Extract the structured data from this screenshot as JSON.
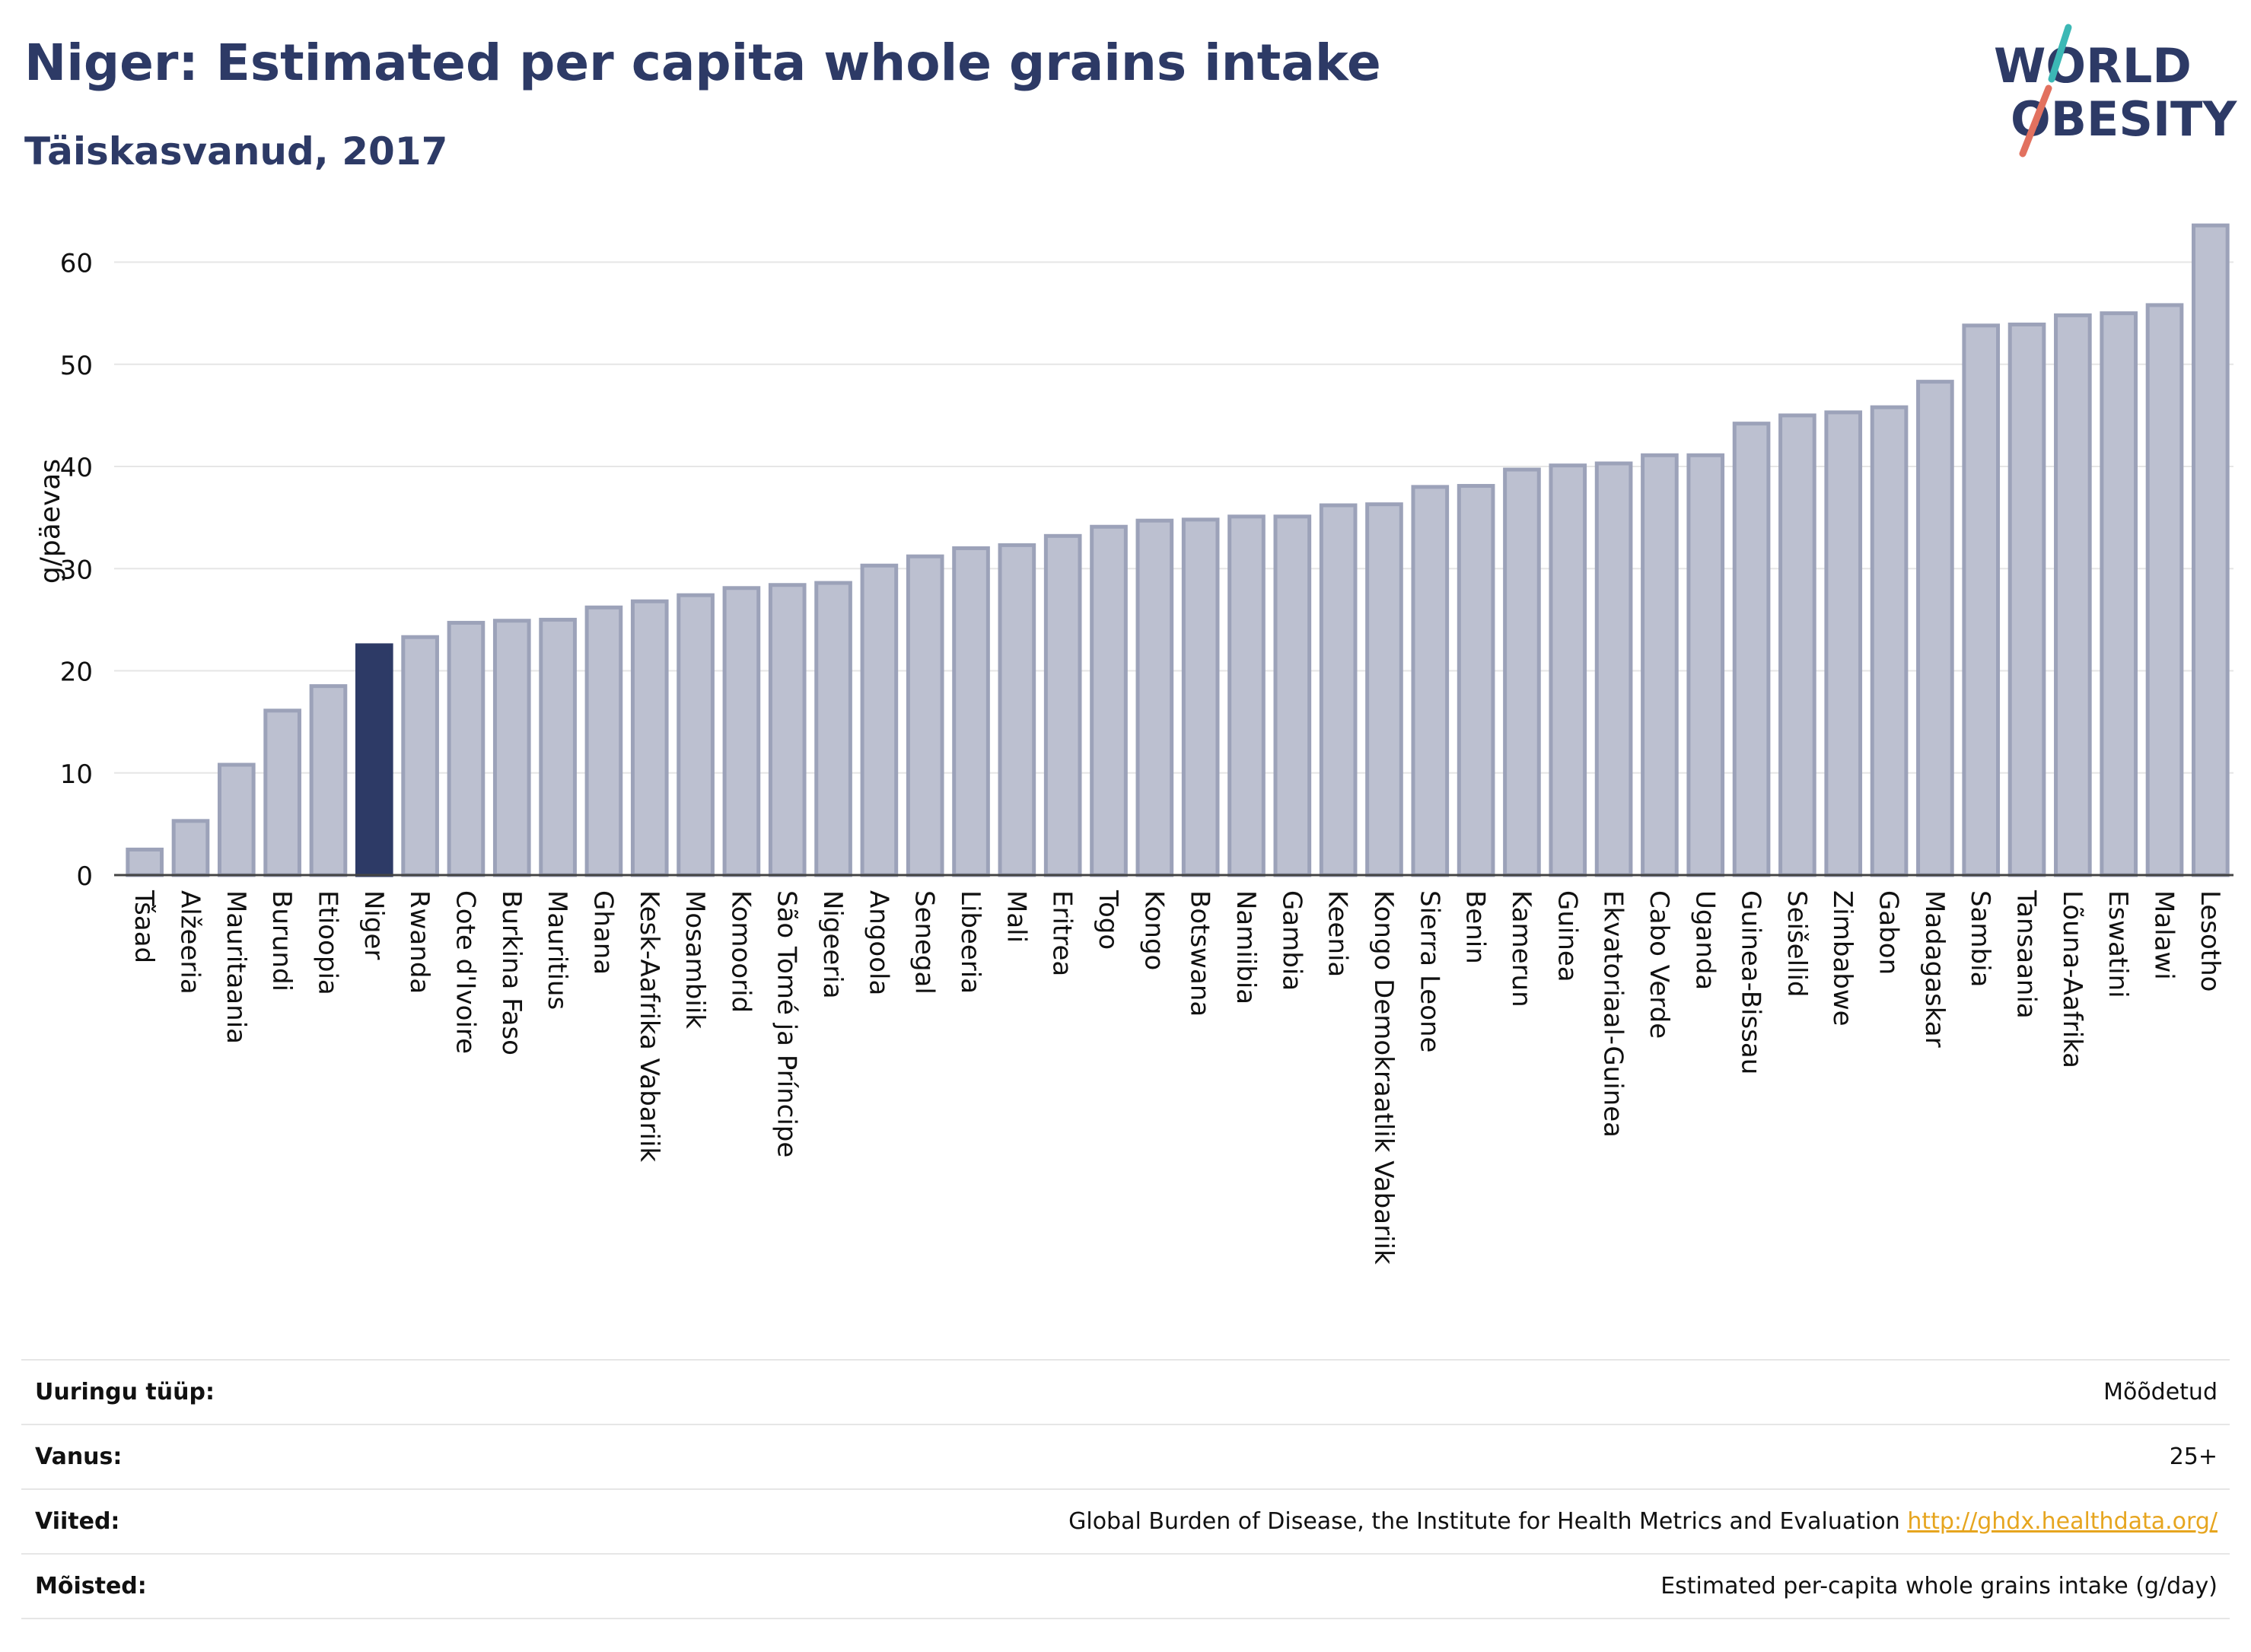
{
  "header": {
    "title": "Niger: Estimated per capita whole grains intake",
    "subtitle": "Täiskasvanud, 2017"
  },
  "logo": {
    "line1": "WORLD",
    "line2": "OBESITY"
  },
  "chart_data": {
    "type": "bar",
    "ylabel": "g/päevas",
    "ylim": [
      0,
      66
    ],
    "yticks": [
      0,
      10,
      20,
      30,
      40,
      50,
      60
    ],
    "grid": true,
    "highlight": "Niger",
    "colors": {
      "bar": "#bcc0d0",
      "bar_edge": "#9ca2b9",
      "highlight": "#2d3a66"
    },
    "categories": [
      "Tšaad",
      "Alžeeria",
      "Mauritaania",
      "Burundi",
      "Etioopia",
      "Niger",
      "Rwanda",
      "Cote d'Ivoire",
      "Burkina Faso",
      "Mauritius",
      "Ghana",
      "Kesk-Aafrika Vabariik",
      "Mosambiik",
      "Komoorid",
      "São Tomé ja Príncipe",
      "Nigeeria",
      "Angoola",
      "Senegal",
      "Libeeria",
      "Mali",
      "Eritrea",
      "Togo",
      "Kongo",
      "Botswana",
      "Namiibia",
      "Gambia",
      "Keenia",
      "Kongo Demokraatlik Vabariik",
      "Sierra Leone",
      "Benin",
      "Kamerun",
      "Guinea",
      "Ekvatoriaal-Guinea",
      "Cabo Verde",
      "Uganda",
      "Guinea-Bissau",
      "Seišellid",
      "Zimbabwe",
      "Gabon",
      "Madagaskar",
      "Sambia",
      "Tansaania",
      "Lõuna-Aafrika",
      "Eswatini",
      "Malawi",
      "Lesotho"
    ],
    "values": [
      2.5,
      5.3,
      10.8,
      16.1,
      18.5,
      22.5,
      23.3,
      24.7,
      24.9,
      25.0,
      26.2,
      26.8,
      27.4,
      28.1,
      28.4,
      28.6,
      30.3,
      31.2,
      32.0,
      32.3,
      33.2,
      34.1,
      34.7,
      34.8,
      35.1,
      35.1,
      36.2,
      36.3,
      38.0,
      38.1,
      39.7,
      40.1,
      40.3,
      41.1,
      41.1,
      44.2,
      45.0,
      45.3,
      45.8,
      48.3,
      53.8,
      53.9,
      54.8,
      55.0,
      55.8,
      63.6
    ]
  },
  "meta": {
    "rows": [
      {
        "label": "Uuringu tüüp:",
        "value": "Mõõdetud"
      },
      {
        "label": "Vanus:",
        "value": "25+"
      },
      {
        "label": "Viited:",
        "value": "Global Burden of Disease, the Institute for Health Metrics and Evaluation",
        "link": "http://ghdx.healthdata.org/"
      },
      {
        "label": "Mõisted:",
        "value": "Estimated per-capita whole grains intake (g/day)"
      }
    ]
  }
}
